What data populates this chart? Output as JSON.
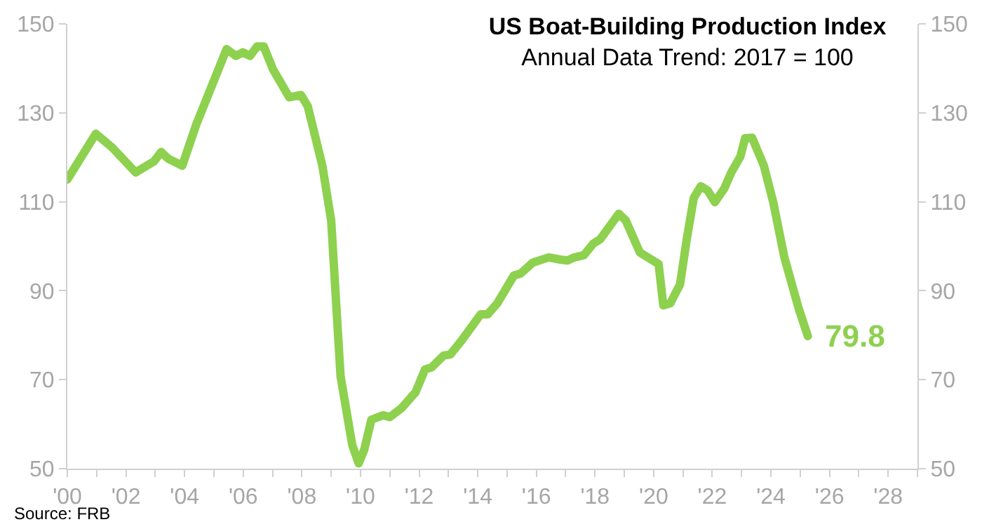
{
  "chart_data": {
    "type": "line",
    "title": "US Boat-Building Production Index",
    "subtitle": "Annual Data Trend: 2017 = 100",
    "x": [
      2000.0,
      2000.97,
      2001.53,
      2002.33,
      2002.96,
      2003.2,
      2003.44,
      2003.92,
      2004.4,
      2005.43,
      2005.75,
      2005.99,
      2006.23,
      2006.47,
      2006.7,
      2007.02,
      2007.57,
      2007.97,
      2008.2,
      2008.7,
      2009.0,
      2009.32,
      2009.72,
      2009.94,
      2010.13,
      2010.37,
      2010.77,
      2011.0,
      2011.4,
      2011.88,
      2012.2,
      2012.43,
      2012.83,
      2013.07,
      2013.47,
      2014.1,
      2014.34,
      2014.67,
      2015.23,
      2015.47,
      2015.87,
      2016.42,
      2016.82,
      2017.06,
      2017.3,
      2017.62,
      2017.94,
      2018.18,
      2018.81,
      2019.05,
      2019.53,
      2019.93,
      2020.17,
      2020.33,
      2020.57,
      2020.9,
      2021.13,
      2021.37,
      2021.61,
      2021.85,
      2022.09,
      2022.41,
      2022.65,
      2022.96,
      2023.12,
      2023.36,
      2023.76,
      2024.08,
      2024.46,
      2024.94,
      2025.26
    ],
    "series": [
      {
        "color": "#8dd14f",
        "values": [
          115.0,
          125.3,
          122.2,
          116.6,
          119.1,
          121.2,
          119.7,
          118.1,
          127.4,
          144.3,
          142.8,
          143.6,
          142.8,
          144.9,
          144.9,
          139.7,
          133.5,
          134.0,
          131.5,
          118.1,
          105.8,
          70.8,
          55.3,
          51.2,
          54.3,
          61.0,
          62.0,
          61.6,
          63.6,
          67.2,
          72.3,
          72.8,
          75.4,
          75.7,
          79.0,
          84.7,
          84.7,
          87.2,
          93.4,
          93.9,
          96.3,
          97.5,
          97.0,
          96.8,
          97.5,
          98.0,
          100.6,
          101.6,
          107.3,
          105.8,
          98.6,
          97.0,
          96.0,
          86.7,
          87.2,
          91.4,
          101.6,
          110.9,
          113.5,
          112.5,
          109.9,
          113.0,
          116.6,
          120.2,
          124.3,
          124.4,
          118.1,
          109.9,
          97.5,
          86.2,
          79.8
        ]
      }
    ],
    "annotations": [
      {
        "text": "79.8",
        "x": 2025.26,
        "y": 79.8
      },
      "Source: FRB"
    ],
    "xlim": [
      2000,
      2029
    ],
    "xticks": [
      {
        "value": 2000,
        "label": "'00"
      },
      {
        "value": 2001,
        "label": null
      },
      {
        "value": 2002,
        "label": "'02"
      },
      {
        "value": 2003,
        "label": null
      },
      {
        "value": 2004,
        "label": "'04"
      },
      {
        "value": 2005,
        "label": null
      },
      {
        "value": 2006,
        "label": "'06"
      },
      {
        "value": 2007,
        "label": null
      },
      {
        "value": 2008,
        "label": "'08"
      },
      {
        "value": 2009,
        "label": null
      },
      {
        "value": 2010,
        "label": "'10"
      },
      {
        "value": 2011,
        "label": null
      },
      {
        "value": 2012,
        "label": "'12"
      },
      {
        "value": 2013,
        "label": null
      },
      {
        "value": 2014,
        "label": "'14"
      },
      {
        "value": 2015,
        "label": null
      },
      {
        "value": 2016,
        "label": "'16"
      },
      {
        "value": 2017,
        "label": null
      },
      {
        "value": 2018,
        "label": "'18"
      },
      {
        "value": 2019,
        "label": null
      },
      {
        "value": 2020,
        "label": "'20"
      },
      {
        "value": 2021,
        "label": null
      },
      {
        "value": 2022,
        "label": "'22"
      },
      {
        "value": 2023,
        "label": null
      },
      {
        "value": 2024,
        "label": "'24"
      },
      {
        "value": 2025,
        "label": null
      },
      {
        "value": 2026,
        "label": "'26"
      },
      {
        "value": 2027,
        "label": null
      },
      {
        "value": 2028,
        "label": "'28"
      },
      {
        "value": 2029,
        "label": null
      }
    ],
    "ylim": [
      50,
      150
    ],
    "yticks": [
      50,
      70,
      90,
      110,
      130,
      150
    ],
    "y2lim": [
      50,
      150
    ],
    "y2ticks": [
      50,
      70,
      90,
      110,
      130,
      150
    ],
    "marker": "none",
    "line_style": "solid"
  }
}
